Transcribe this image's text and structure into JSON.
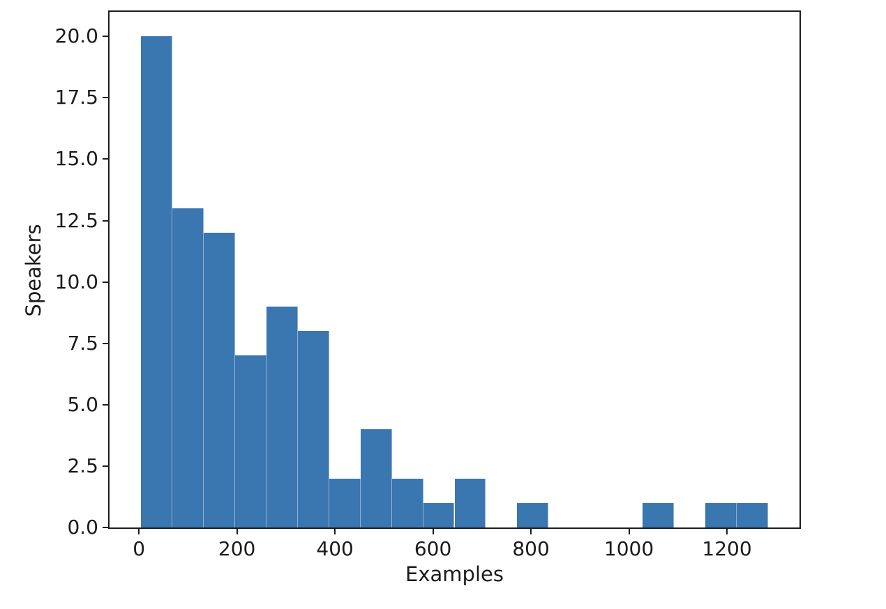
{
  "figure": {
    "background_color": "#ffffff"
  },
  "chart_data": {
    "type": "bar",
    "variant": "histogram",
    "xlabel": "Examples",
    "ylabel": "Speakers",
    "bar_color": "#3a76b0",
    "axis_color": "#1c1c1c",
    "text_color": "#1b1b1b",
    "grid": false,
    "legend": null,
    "xlim": [
      -60,
      1348
    ],
    "ylim": [
      0,
      21
    ],
    "bin_edges": [
      4,
      68,
      132,
      196,
      260,
      324,
      388,
      452,
      516,
      580,
      644,
      708,
      772,
      836,
      900,
      964,
      1028,
      1092,
      1156,
      1220,
      1284
    ],
    "counts": [
      20,
      13,
      12,
      7,
      9,
      8,
      2,
      4,
      2,
      1,
      2,
      0,
      1,
      0,
      0,
      0,
      1,
      0,
      1,
      1
    ],
    "x_ticks": [
      {
        "value": 0,
        "label": "0"
      },
      {
        "value": 200,
        "label": "200"
      },
      {
        "value": 400,
        "label": "400"
      },
      {
        "value": 600,
        "label": "600"
      },
      {
        "value": 800,
        "label": "800"
      },
      {
        "value": 1000,
        "label": "1000"
      },
      {
        "value": 1200,
        "label": "1200"
      }
    ],
    "y_ticks": [
      {
        "value": 0,
        "label": "0.0"
      },
      {
        "value": 2.5,
        "label": "2.5"
      },
      {
        "value": 5,
        "label": "5.0"
      },
      {
        "value": 7.5,
        "label": "7.5"
      },
      {
        "value": 10,
        "label": "10.0"
      },
      {
        "value": 12.5,
        "label": "12.5"
      },
      {
        "value": 15,
        "label": "15.0"
      },
      {
        "value": 17.5,
        "label": "17.5"
      },
      {
        "value": 20,
        "label": "20.0"
      }
    ]
  }
}
